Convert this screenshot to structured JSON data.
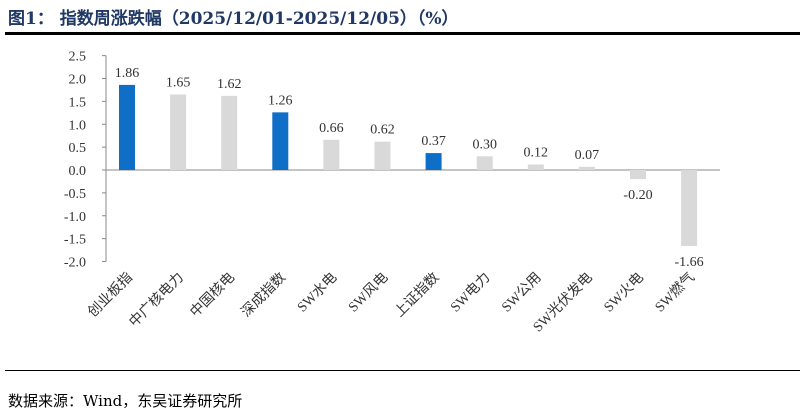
{
  "title": "图1： 指数周涨跌幅（2025/12/01-2025/12/05）（%）",
  "source": "数据来源：Wind，东吴证券研究所",
  "colors": {
    "highlight": "#0F6FC6",
    "default": "#D9D9D9",
    "title": "#1F3864"
  },
  "chart_data": {
    "type": "bar",
    "title": "",
    "xlabel": "",
    "ylabel": "",
    "ylim": [
      -2.0,
      2.5
    ],
    "yticks": [
      "2.5",
      "2.0",
      "1.5",
      "1.0",
      "0.5",
      "0.0",
      "-0.5",
      "-1.0",
      "-1.5",
      "-2.0"
    ],
    "grid": false,
    "categories": [
      "创业板指",
      "中广核电力",
      "中国核电",
      "深成指数",
      "SW水电",
      "SW风电",
      "上证指数",
      "SW电力",
      "SW公用",
      "SW光伏发电",
      "SW火电",
      "SW燃气"
    ],
    "values": [
      1.86,
      1.65,
      1.62,
      1.26,
      0.66,
      0.62,
      0.37,
      0.3,
      0.12,
      0.07,
      -0.2,
      -1.66
    ],
    "labels": [
      "1.86",
      "1.65",
      "1.62",
      "1.26",
      "0.66",
      "0.62",
      "0.37",
      "0.30",
      "0.12",
      "0.07",
      "-0.20",
      "-1.66"
    ],
    "highlighted": [
      true,
      false,
      false,
      true,
      false,
      false,
      true,
      false,
      false,
      false,
      false,
      false
    ]
  }
}
